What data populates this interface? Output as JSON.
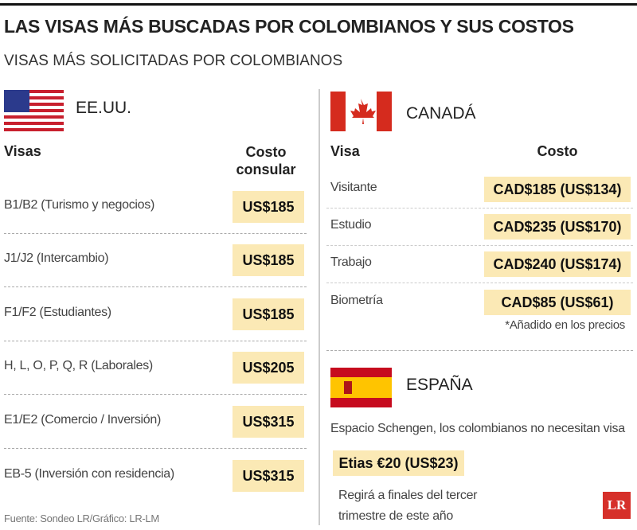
{
  "header": {
    "title": "LAS VISAS MÁS BUSCADAS POR COLOMBIANOS Y SUS COSTOS",
    "subtitle": "VISAS MÁS SOLICITADAS POR COLOMBIANOS"
  },
  "usa": {
    "country": "EE.UU.",
    "headers": [
      "Visas",
      "Costo consular"
    ],
    "rows": [
      [
        "B1/B2 (Turismo y negocios)",
        "US$185"
      ],
      [
        "J1/J2 (Intercambio)",
        "US$185"
      ],
      [
        "F1/F2 (Estudiantes)",
        "US$185"
      ],
      [
        "H, L, O, P, Q, R (Laborales)",
        "US$205"
      ],
      [
        "E1/E2 (Comercio / Inversión)",
        "US$315"
      ],
      [
        "EB-5 (Inversión con residencia)",
        "US$315"
      ]
    ]
  },
  "canada": {
    "country": "CANADÁ",
    "headers": [
      "Visa",
      "Costo"
    ],
    "rows": [
      [
        "Visitante",
        "CAD$185 (US$134)"
      ],
      [
        "Estudio",
        "CAD$235 (US$170)"
      ],
      [
        "Trabajo",
        "CAD$240 (US$174)"
      ],
      [
        "Biometría",
        "CAD$85 (US$61)"
      ]
    ],
    "note": "*Añadido en los precios"
  },
  "spain": {
    "country": "ESPAÑA",
    "text": "Espacio Schengen, los colombianos no necesitan visa",
    "fee": "Etias €20 (US$23)",
    "note": "Regirá a finales del tercer trimestre de este año"
  },
  "footer": {
    "source": "Fuente: Sondeo LR/Gráfico: LR-LM",
    "logo": "LR"
  }
}
